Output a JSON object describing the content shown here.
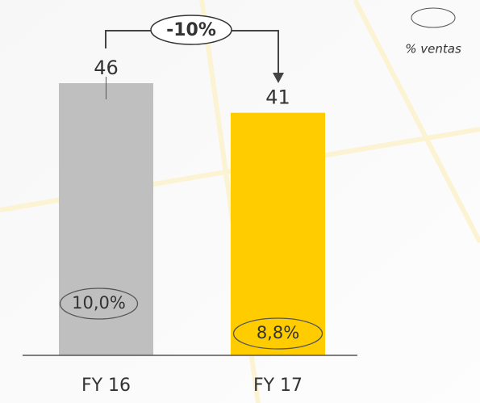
{
  "chart_data": {
    "type": "bar",
    "categories": [
      "FY 16",
      "FY 17"
    ],
    "values": [
      46,
      41
    ],
    "colors": [
      "#bfbfbf",
      "#ffcc00"
    ],
    "ylim": [
      0,
      50
    ],
    "sales_pct": {
      "name": "% ventas",
      "values": [
        10.0,
        8.8
      ],
      "value_labels": [
        "10,0%",
        "8,8%"
      ]
    },
    "annotation": "-10%"
  }
}
